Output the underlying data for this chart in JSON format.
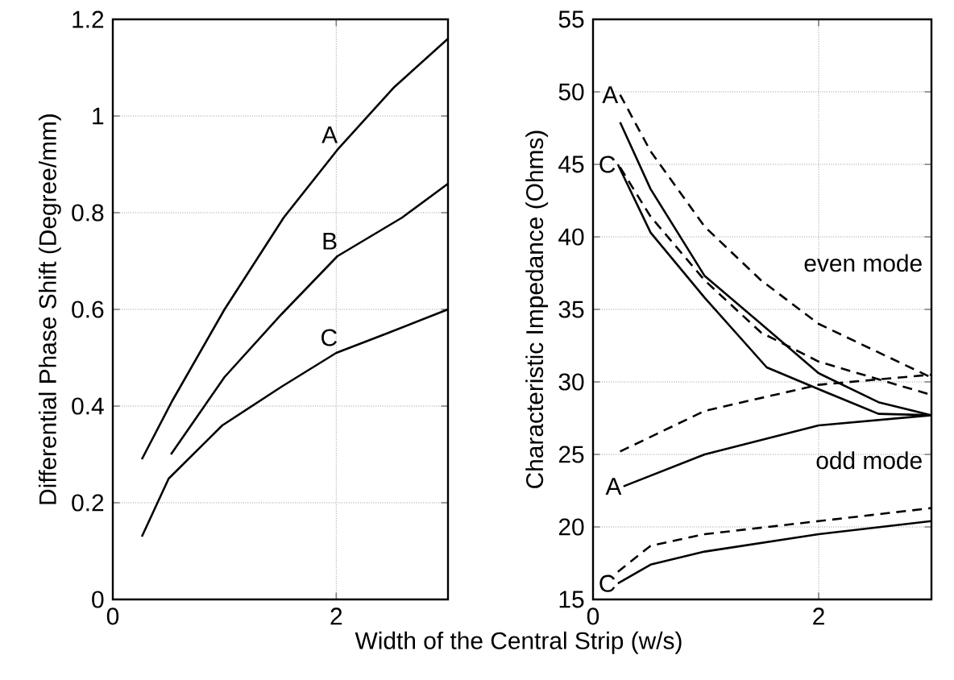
{
  "chart_data": [
    {
      "type": "line",
      "ylabel": "Differential Phase Shift (Degree/mm)",
      "xlabel": "Width of the Central Strip (w/s)",
      "xlim": [
        0,
        3
      ],
      "ylim": [
        0,
        1.2
      ],
      "xticks": [
        0,
        2
      ],
      "yticks": [
        0,
        0.2,
        0.4,
        0.6,
        0.8,
        1,
        1.2
      ],
      "grid": true,
      "line_style": "solid",
      "series": [
        {
          "color": "#000000",
          "x": [
            0.26,
            0.53,
            1.0,
            1.53,
            2.01,
            2.52,
            3.0
          ],
          "values": [
            0.29,
            0.41,
            0.6,
            0.79,
            0.93,
            1.06,
            1.16
          ]
        },
        {
          "color": "#000000",
          "x": [
            0.52,
            1.0,
            1.51,
            2.01,
            2.59,
            3.0
          ],
          "values": [
            0.3,
            0.46,
            0.59,
            0.71,
            0.79,
            0.86
          ]
        },
        {
          "color": "#000000",
          "x": [
            0.26,
            0.5,
            0.98,
            1.51,
            2.0,
            2.45,
            3.0
          ],
          "values": [
            0.13,
            0.25,
            0.36,
            0.44,
            0.51,
            0.55,
            0.6
          ]
        }
      ],
      "annotations": [
        {
          "text": "A",
          "x": 2.03,
          "y": 0.94
        },
        {
          "text": "B",
          "x": 2.03,
          "y": 0.72
        },
        {
          "text": "C",
          "x": 2.03,
          "y": 0.52
        }
      ]
    },
    {
      "type": "line",
      "ylabel": "Characteristic Impedance (Ohms)",
      "xlim": [
        0,
        3
      ],
      "ylim": [
        15,
        55
      ],
      "xticks": [
        0,
        2
      ],
      "yticks": [
        15,
        20,
        25,
        30,
        35,
        40,
        45,
        50,
        55
      ],
      "grid": true,
      "series": [
        {
          "color": "#000000",
          "line_style": "solid",
          "x": [
            0.24,
            0.51,
            0.99,
            1.49,
            2.0,
            2.53,
            3.0
          ],
          "values": [
            47.9,
            43.3,
            37.3,
            34.0,
            30.6,
            28.6,
            27.7
          ]
        },
        {
          "color": "#000000",
          "line_style": "dashed",
          "x": [
            0.24,
            0.51,
            0.99,
            1.49,
            2.0,
            3.0
          ],
          "values": [
            49.8,
            45.9,
            40.7,
            37.0,
            34.0,
            30.3
          ]
        },
        {
          "color": "#000000",
          "line_style": "solid",
          "x": [
            0.22,
            0.51,
            0.99,
            1.54,
            2.0,
            2.53,
            3.0
          ],
          "values": [
            45.0,
            40.3,
            35.8,
            31.0,
            29.5,
            27.8,
            27.7
          ]
        },
        {
          "color": "#000000",
          "line_style": "dashed",
          "x": [
            0.24,
            0.51,
            0.99,
            1.49,
            2.0,
            3.0
          ],
          "values": [
            44.8,
            41.4,
            37.0,
            33.4,
            31.4,
            29.1
          ]
        },
        {
          "color": "#000000",
          "line_style": "solid",
          "x": [
            0.27,
            0.99,
            2.0,
            3.0
          ],
          "values": [
            22.8,
            25.0,
            27.0,
            27.7
          ]
        },
        {
          "color": "#000000",
          "line_style": "dashed",
          "x": [
            0.24,
            0.99,
            2.0,
            3.0
          ],
          "values": [
            25.2,
            28.0,
            29.8,
            30.5
          ]
        },
        {
          "color": "#000000",
          "line_style": "solid",
          "x": [
            0.22,
            0.51,
            0.99,
            2.0,
            3.0
          ],
          "values": [
            16.1,
            17.4,
            18.3,
            19.5,
            20.4
          ]
        },
        {
          "color": "#000000",
          "line_style": "dashed",
          "x": [
            0.22,
            0.51,
            0.99,
            2.0,
            3.0
          ],
          "values": [
            16.9,
            18.7,
            19.5,
            20.4,
            21.3
          ]
        }
      ],
      "annotations": [
        {
          "text": "A",
          "x": 0.24,
          "y": 49.8
        },
        {
          "text": "C",
          "x": 0.22,
          "y": 45.0
        },
        "even mode",
        {
          "text": "A",
          "x": 0.27,
          "y": 22.8
        },
        "odd mode",
        {
          "text": "C",
          "x": 0.22,
          "y": 16.1
        }
      ]
    }
  ]
}
